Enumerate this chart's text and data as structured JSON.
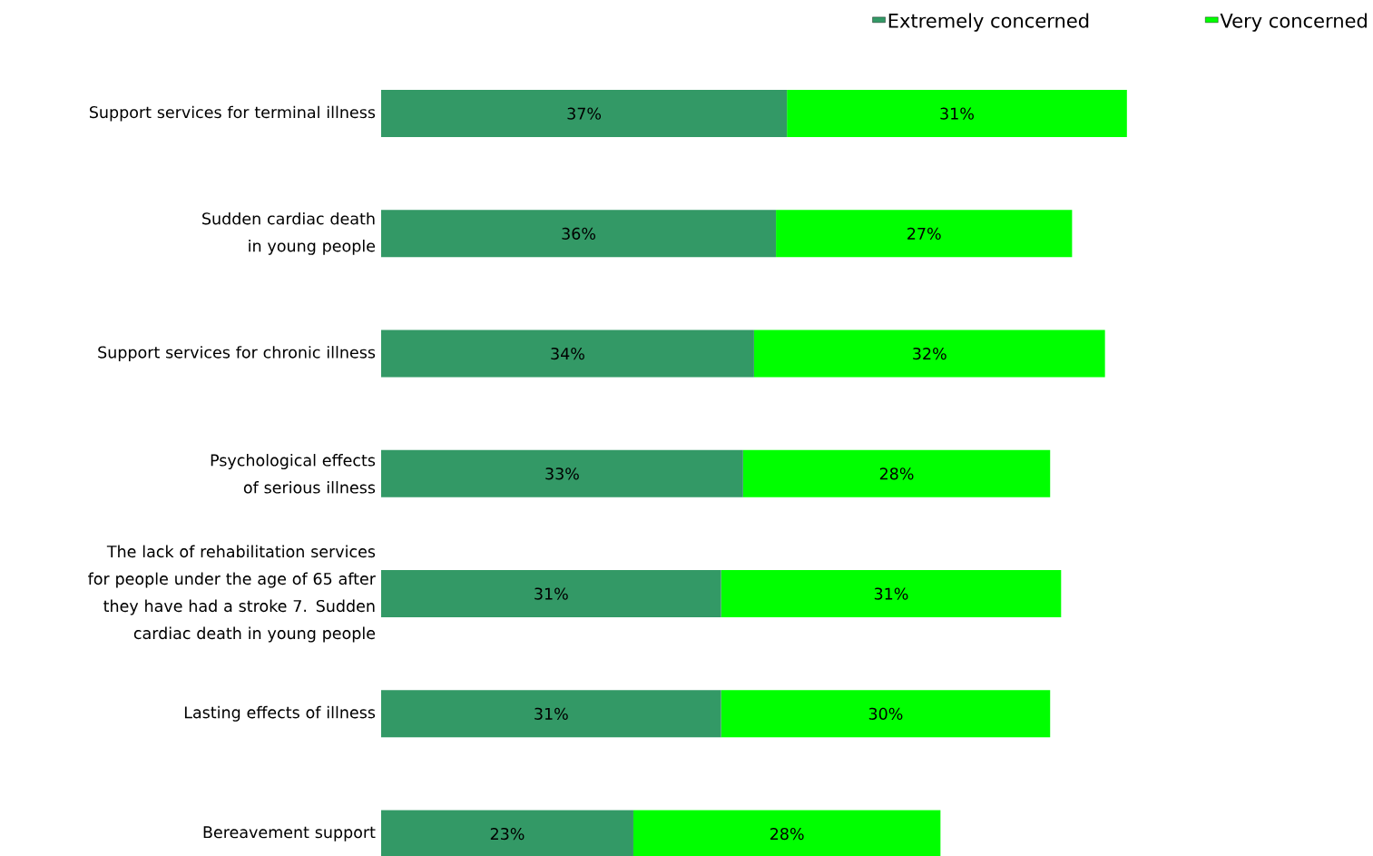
{
  "chart_data": {
    "type": "bar",
    "orientation": "horizontal",
    "stacked": true,
    "legend": "top right",
    "categories": [
      "Support services for terminal illness",
      "Sudden cardiac death in young people",
      "Support services for chronic illness",
      "Psychological effects of serious illness",
      "The lack of rehabilitation services for people under the age of 65 after they have had a stroke 7. Sudden cardiac death in young people",
      "Lasting effects of illness",
      "Bereavement support"
    ],
    "series": [
      {
        "name": "Extremely concerned",
        "color": "#339966",
        "values": [
          37,
          36,
          34,
          33,
          31,
          31,
          23
        ],
        "value_labels": [
          "37%",
          "36%",
          "34%",
          "33%",
          "31%",
          "31%",
          "23%"
        ]
      },
      {
        "name": "Very concerned",
        "color": "#00ff00",
        "values": [
          31,
          27,
          32,
          28,
          31,
          30,
          28
        ],
        "value_labels": [
          "31%",
          "27%",
          "32%",
          "28%",
          "31%",
          "30%",
          "28%"
        ]
      }
    ]
  }
}
